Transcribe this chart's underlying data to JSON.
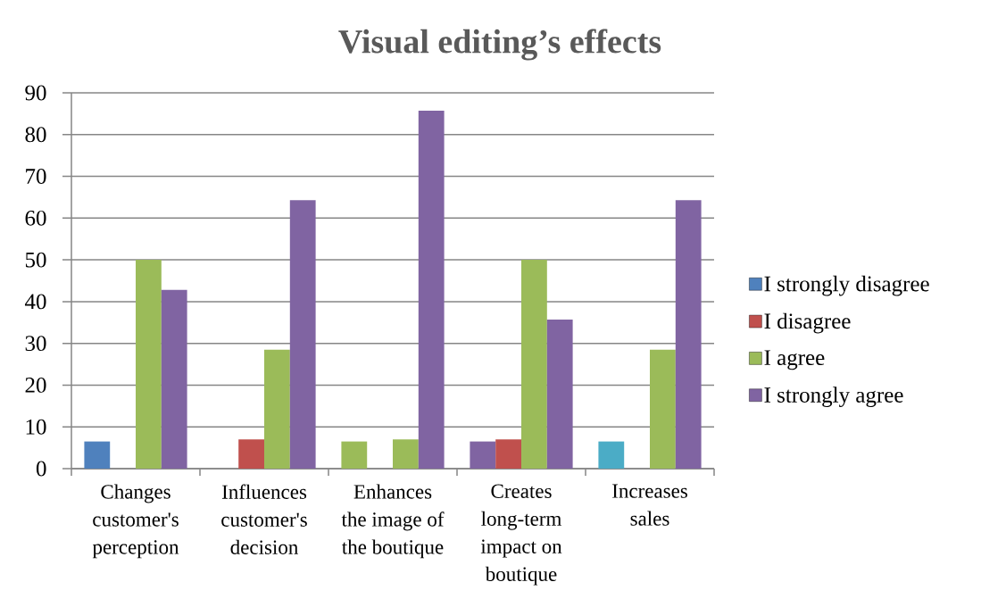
{
  "chart_data": {
    "type": "bar",
    "title": "Visual editing’s effects",
    "categories": [
      "Changes customer's perception",
      "Influences customer's decision",
      "Enhances the image of the boutique",
      "Creates long-term impact on boutique",
      "Increases sales"
    ],
    "series": [
      {
        "name": "I strongly disagree",
        "color": "#4f81bd",
        "colors": [
          "#4f81bd",
          "#4f81bd",
          "#9bbb59",
          "#8064a2",
          "#4bacc6"
        ],
        "values": [
          6.5,
          null,
          6.5,
          6.5,
          6.5
        ]
      },
      {
        "name": "I disagree",
        "color": "#c0504d",
        "values": [
          null,
          7,
          null,
          7,
          null
        ]
      },
      {
        "name": "I agree",
        "color": "#9bbb59",
        "values": [
          50,
          28.5,
          7,
          50,
          28.5
        ]
      },
      {
        "name": "I strongly agree",
        "color": "#8064a2",
        "values": [
          42.8,
          64.3,
          85.7,
          35.7,
          64.3
        ]
      }
    ],
    "ylim": [
      0,
      90
    ],
    "yticks": [
      0,
      10,
      20,
      30,
      40,
      50,
      60,
      70,
      80,
      90
    ],
    "grid": "y",
    "legend": "right"
  }
}
